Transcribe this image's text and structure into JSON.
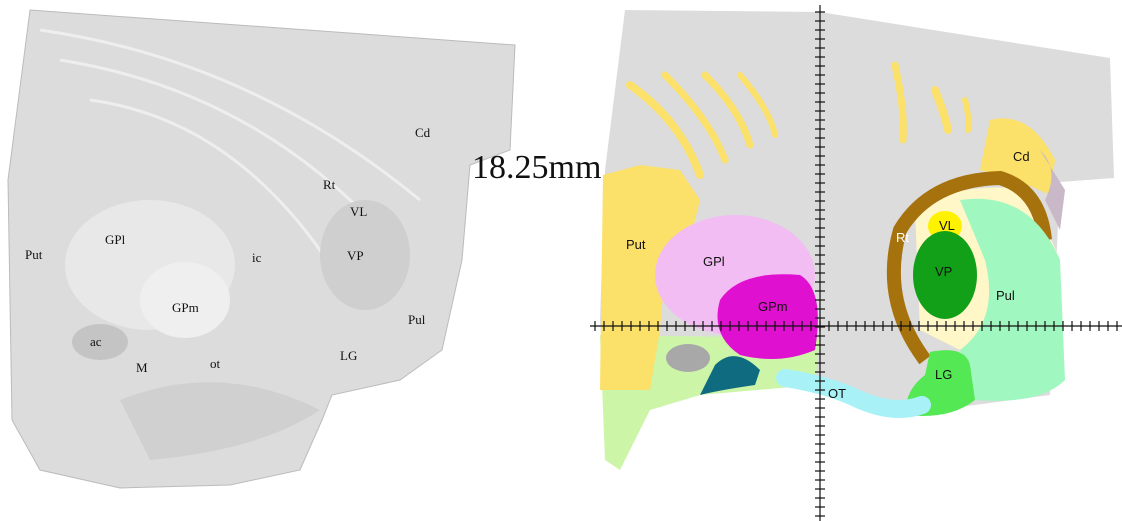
{
  "section": {
    "label": "18.25mm"
  },
  "photo": {
    "labels": [
      "Put",
      "GPl",
      "GPm",
      "ac",
      "M",
      "ot",
      "ic",
      "Rt",
      "VL",
      "VP",
      "Cd",
      "Pul",
      "LG"
    ]
  },
  "atlas": {
    "labels": [
      "Cd",
      "Put",
      "GPl",
      "GPm",
      "Rt",
      "VL",
      "VP",
      "Pul",
      "LG",
      "OT"
    ]
  }
}
